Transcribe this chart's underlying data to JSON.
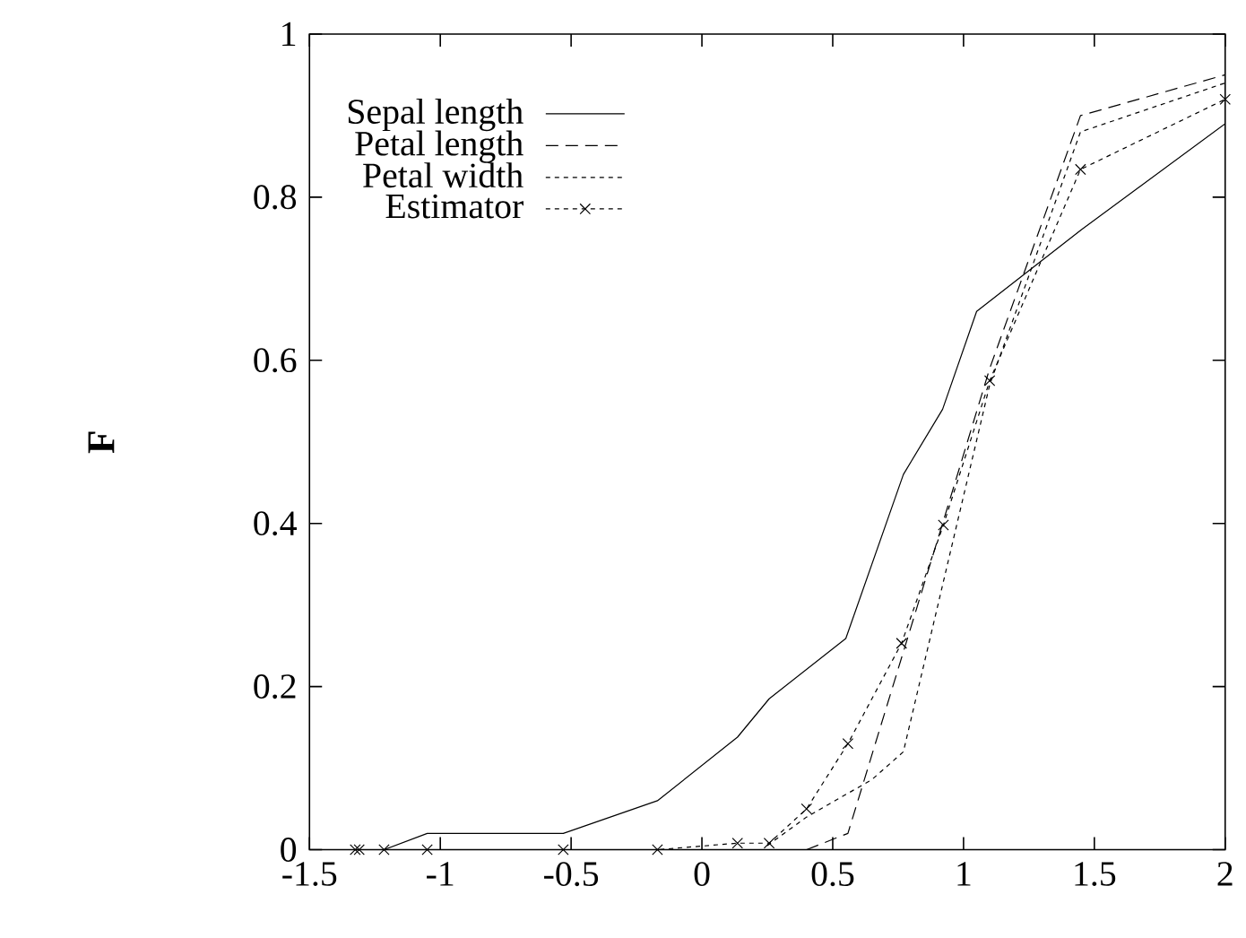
{
  "chart_data": {
    "type": "line",
    "ylabel": "F",
    "xlim": [
      -1.5,
      2
    ],
    "ylim": [
      0,
      1
    ],
    "xticks": [
      -1.5,
      -1,
      -0.5,
      0,
      0.5,
      1,
      1.5,
      2
    ],
    "yticks": [
      0,
      0.2,
      0.4,
      0.6,
      0.8,
      1
    ],
    "legend": "top left",
    "grid": false,
    "series": [
      {
        "name": "Sepal length",
        "color": "#000000",
        "line_style": "solid",
        "marker": "none",
        "x": [
          -1.215,
          -1.05,
          -0.53,
          -0.17,
          0.136,
          0.257,
          0.55,
          0.77,
          0.92,
          1.05,
          1.45,
          2.0
        ],
        "values": [
          0,
          0.02,
          0.02,
          0.06,
          0.138,
          0.185,
          0.259,
          0.46,
          0.54,
          0.66,
          0.76,
          0.89
        ]
      },
      {
        "name": "Petal length",
        "color": "#000000",
        "line_style": "dashed",
        "marker": "none",
        "x": [
          0.4,
          0.558,
          0.92,
          1.1,
          1.447,
          2.0
        ],
        "values": [
          0,
          0.02,
          0.4,
          0.59,
          0.9,
          0.95
        ]
      },
      {
        "name": "Petal width",
        "color": "#000000",
        "line_style": "dotted",
        "marker": "none",
        "x": [
          0.25,
          0.4,
          0.65,
          0.77,
          1.1,
          1.447,
          2.0
        ],
        "values": [
          0.005,
          0.04,
          0.086,
          0.12,
          0.57,
          0.88,
          0.94
        ]
      },
      {
        "name": "Estimator",
        "color": "#000000",
        "line_style": "dotted",
        "marker": "cross",
        "x": [
          -1.325,
          -1.31,
          -1.215,
          -1.05,
          -0.53,
          -0.17,
          0.136,
          0.257,
          0.4,
          0.558,
          0.763,
          0.923,
          1.1,
          1.447,
          2.0
        ],
        "values": [
          0,
          0,
          0,
          0,
          0,
          0,
          0.008,
          0.008,
          0.05,
          0.13,
          0.253,
          0.398,
          0.575,
          0.834,
          0.92
        ]
      }
    ]
  }
}
